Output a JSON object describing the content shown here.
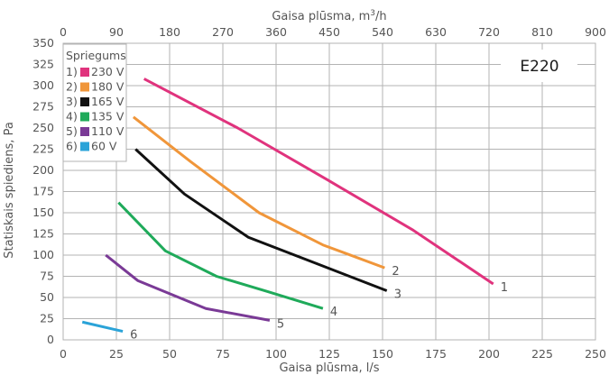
{
  "chart_data": {
    "type": "line",
    "badge": "E220",
    "xlabel": "Gaisa plūsma, l/s",
    "x2label_prefix": "Gaisa plūsma, m",
    "x2label_sup": "3",
    "x2label_suffix": "/h",
    "ylabel": "Statiskais spiediens, Pa",
    "xlim": [
      0,
      250
    ],
    "ylim": [
      0,
      350
    ],
    "x2lim": [
      0,
      900
    ],
    "xticks": [
      "0",
      "25",
      "50",
      "75",
      "100",
      "125",
      "150",
      "175",
      "200",
      "225",
      "250"
    ],
    "x2ticks": [
      "0",
      "90",
      "180",
      "270",
      "360",
      "450",
      "540",
      "630",
      "720",
      "810",
      "900"
    ],
    "yticks": [
      "0",
      "25",
      "50",
      "75",
      "100",
      "125",
      "150",
      "175",
      "200",
      "225",
      "250",
      "275",
      "300",
      "325",
      "350"
    ],
    "legend_title": "Spriegums",
    "legend": [
      {
        "num": "1)",
        "label": "230 V",
        "color": "#e0337d"
      },
      {
        "num": "2)",
        "label": "180 V",
        "color": "#f0963a"
      },
      {
        "num": "3)",
        "label": "165 V",
        "color": "#111111"
      },
      {
        "num": "4)",
        "label": "135 V",
        "color": "#1faa5a"
      },
      {
        "num": "5)",
        "label": "110 V",
        "color": "#7a3a96"
      },
      {
        "num": "6)",
        "label": "60 V",
        "color": "#2aa3d8"
      }
    ],
    "series": [
      {
        "name": "230 V",
        "label": "1",
        "color": "#e0337d",
        "points": [
          [
            38,
            308
          ],
          [
            82,
            250
          ],
          [
            124,
            189
          ],
          [
            164,
            130
          ],
          [
            202,
            66
          ]
        ]
      },
      {
        "name": "180 V",
        "label": "2",
        "color": "#f0963a",
        "points": [
          [
            33,
            263
          ],
          [
            60,
            210
          ],
          [
            92,
            150
          ],
          [
            122,
            112
          ],
          [
            151,
            85
          ]
        ]
      },
      {
        "name": "165 V",
        "label": "3",
        "color": "#111111",
        "points": [
          [
            34,
            225
          ],
          [
            57,
            172
          ],
          [
            87,
            121
          ],
          [
            119,
            90
          ],
          [
            152,
            58
          ]
        ]
      },
      {
        "name": "135 V",
        "label": "4",
        "color": "#1faa5a",
        "points": [
          [
            26,
            162
          ],
          [
            48,
            105
          ],
          [
            72,
            75
          ],
          [
            96,
            57
          ],
          [
            122,
            37
          ]
        ]
      },
      {
        "name": "110 V",
        "label": "5",
        "color": "#7a3a96",
        "points": [
          [
            20,
            100
          ],
          [
            35,
            70
          ],
          [
            67,
            37
          ],
          [
            97,
            23
          ]
        ]
      },
      {
        "name": "60 V",
        "label": "6",
        "color": "#2aa3d8",
        "points": [
          [
            9,
            21
          ],
          [
            28,
            10
          ]
        ]
      }
    ]
  }
}
